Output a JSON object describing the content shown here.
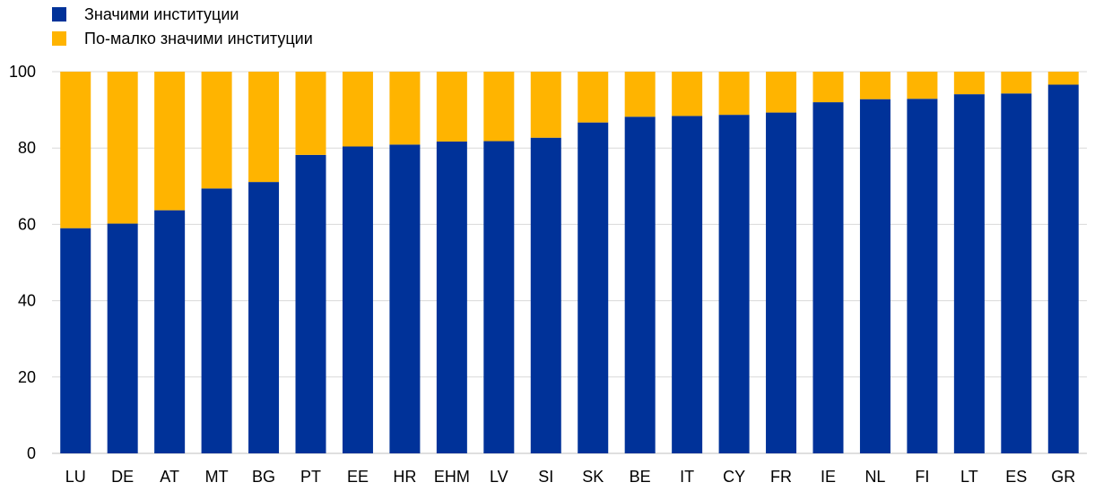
{
  "chart_data": {
    "type": "bar",
    "stacked": true,
    "categories": [
      "LU",
      "DE",
      "AT",
      "MT",
      "BG",
      "PT",
      "EE",
      "HR",
      "EHM",
      "LV",
      "SI",
      "SK",
      "BE",
      "IT",
      "CY",
      "FR",
      "IE",
      "NL",
      "FI",
      "LT",
      "ES",
      "GR"
    ],
    "series": [
      {
        "name": "Значими институции",
        "color": "#003299",
        "values": [
          59,
          60.2,
          63.7,
          69.4,
          71.1,
          78.2,
          80.4,
          80.9,
          81.7,
          81.8,
          82.7,
          86.7,
          88.2,
          88.4,
          88.7,
          89.3,
          92.0,
          92.8,
          92.9,
          94.1,
          94.3,
          96.6
        ]
      },
      {
        "name": "По-малко значими институции",
        "color": "#FFB400",
        "values": [
          41,
          39.8,
          36.3,
          30.6,
          28.9,
          21.8,
          19.6,
          19.1,
          18.3,
          18.2,
          17.3,
          13.3,
          11.8,
          11.6,
          11.3,
          10.7,
          8.0,
          7.2,
          7.1,
          5.9,
          5.7,
          3.4
        ]
      }
    ],
    "yticks": [
      0,
      20,
      40,
      60,
      80,
      100
    ],
    "ylim": [
      0,
      100
    ],
    "grid": true,
    "legend_position": "top-left"
  }
}
